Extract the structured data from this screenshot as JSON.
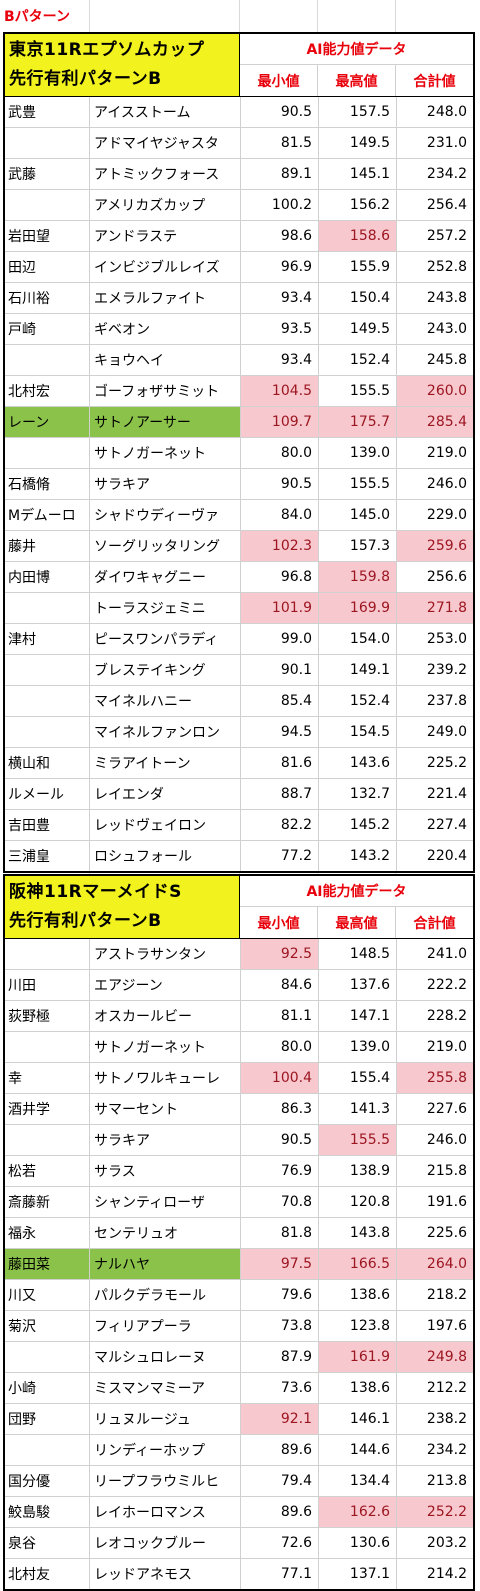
{
  "top_label": "Bパターン",
  "tables": [
    {
      "title1": "東京11Rエプソムカップ",
      "title2": "先行有利パターンB",
      "ai_header": "AI能力値データ",
      "col_min": "最小値",
      "col_max": "最高値",
      "col_total": "合計値",
      "rows": [
        {
          "jockey": "武豊",
          "horse": "アイスストーム",
          "min": "90.5",
          "max": "157.5",
          "total": "248.0",
          "hl": [
            0,
            0,
            0
          ],
          "green": false
        },
        {
          "jockey": "",
          "horse": "アドマイヤジャスタ",
          "min": "81.5",
          "max": "149.5",
          "total": "231.0",
          "hl": [
            0,
            0,
            0
          ],
          "green": false
        },
        {
          "jockey": "武藤",
          "horse": "アトミックフォース",
          "min": "89.1",
          "max": "145.1",
          "total": "234.2",
          "hl": [
            0,
            0,
            0
          ],
          "green": false
        },
        {
          "jockey": "",
          "horse": "アメリカズカップ",
          "min": "100.2",
          "max": "156.2",
          "total": "256.4",
          "hl": [
            0,
            0,
            0
          ],
          "green": false
        },
        {
          "jockey": "岩田望",
          "horse": "アンドラステ",
          "min": "98.6",
          "max": "158.6",
          "total": "257.2",
          "hl": [
            0,
            1,
            0
          ],
          "green": false
        },
        {
          "jockey": "田辺",
          "horse": "インビジブルレイズ",
          "min": "96.9",
          "max": "155.9",
          "total": "252.8",
          "hl": [
            0,
            0,
            0
          ],
          "green": false
        },
        {
          "jockey": "石川裕",
          "horse": "エメラルファイト",
          "min": "93.4",
          "max": "150.4",
          "total": "243.8",
          "hl": [
            0,
            0,
            0
          ],
          "green": false
        },
        {
          "jockey": "戸崎",
          "horse": "ギベオン",
          "min": "93.5",
          "max": "149.5",
          "total": "243.0",
          "hl": [
            0,
            0,
            0
          ],
          "green": false
        },
        {
          "jockey": "",
          "horse": "キョウヘイ",
          "min": "93.4",
          "max": "152.4",
          "total": "245.8",
          "hl": [
            0,
            0,
            0
          ],
          "green": false
        },
        {
          "jockey": "北村宏",
          "horse": "ゴーフォザサミット",
          "min": "104.5",
          "max": "155.5",
          "total": "260.0",
          "hl": [
            1,
            0,
            1
          ],
          "green": false
        },
        {
          "jockey": "レーン",
          "horse": "サトノアーサー",
          "min": "109.7",
          "max": "175.7",
          "total": "285.4",
          "hl": [
            1,
            1,
            1
          ],
          "green": true
        },
        {
          "jockey": "",
          "horse": "サトノガーネット",
          "min": "80.0",
          "max": "139.0",
          "total": "219.0",
          "hl": [
            0,
            0,
            0
          ],
          "green": false
        },
        {
          "jockey": "石橋脩",
          "horse": "サラキア",
          "min": "90.5",
          "max": "155.5",
          "total": "246.0",
          "hl": [
            0,
            0,
            0
          ],
          "green": false
        },
        {
          "jockey": "Mデムーロ",
          "horse": "シャドウディーヴァ",
          "min": "84.0",
          "max": "145.0",
          "total": "229.0",
          "hl": [
            0,
            0,
            0
          ],
          "green": false
        },
        {
          "jockey": "藤井",
          "horse": "ソーグリッタリング",
          "min": "102.3",
          "max": "157.3",
          "total": "259.6",
          "hl": [
            1,
            0,
            1
          ],
          "green": false
        },
        {
          "jockey": "内田博",
          "horse": "ダイワキャグニー",
          "min": "96.8",
          "max": "159.8",
          "total": "256.6",
          "hl": [
            0,
            1,
            0
          ],
          "green": false
        },
        {
          "jockey": "",
          "horse": "トーラスジェミニ",
          "min": "101.9",
          "max": "169.9",
          "total": "271.8",
          "hl": [
            1,
            1,
            1
          ],
          "green": false
        },
        {
          "jockey": "津村",
          "horse": "ピースワンパラディ",
          "min": "99.0",
          "max": "154.0",
          "total": "253.0",
          "hl": [
            0,
            0,
            0
          ],
          "green": false
        },
        {
          "jockey": "",
          "horse": "ブレステイキング",
          "min": "90.1",
          "max": "149.1",
          "total": "239.2",
          "hl": [
            0,
            0,
            0
          ],
          "green": false
        },
        {
          "jockey": "",
          "horse": "マイネルハニー",
          "min": "85.4",
          "max": "152.4",
          "total": "237.8",
          "hl": [
            0,
            0,
            0
          ],
          "green": false
        },
        {
          "jockey": "",
          "horse": "マイネルファンロン",
          "min": "94.5",
          "max": "154.5",
          "total": "249.0",
          "hl": [
            0,
            0,
            0
          ],
          "green": false
        },
        {
          "jockey": "横山和",
          "horse": "ミラアイトーン",
          "min": "81.6",
          "max": "143.6",
          "total": "225.2",
          "hl": [
            0,
            0,
            0
          ],
          "green": false
        },
        {
          "jockey": "ルメール",
          "horse": "レイエンダ",
          "min": "88.7",
          "max": "132.7",
          "total": "221.4",
          "hl": [
            0,
            0,
            0
          ],
          "green": false
        },
        {
          "jockey": "吉田豊",
          "horse": "レッドヴェイロン",
          "min": "82.2",
          "max": "145.2",
          "total": "227.4",
          "hl": [
            0,
            0,
            0
          ],
          "green": false
        },
        {
          "jockey": "三浦皇",
          "horse": "ロシュフォール",
          "min": "77.2",
          "max": "143.2",
          "total": "220.4",
          "hl": [
            0,
            0,
            0
          ],
          "green": false
        }
      ]
    },
    {
      "title1": "阪神11RマーメイドS",
      "title2": "先行有利パターンB",
      "ai_header": "AI能力値データ",
      "col_min": "最小値",
      "col_max": "最高値",
      "col_total": "合計値",
      "rows": [
        {
          "jockey": "",
          "horse": "アストラサンタン",
          "min": "92.5",
          "max": "148.5",
          "total": "241.0",
          "hl": [
            1,
            0,
            0
          ],
          "green": false
        },
        {
          "jockey": "川田",
          "horse": "エアジーン",
          "min": "84.6",
          "max": "137.6",
          "total": "222.2",
          "hl": [
            0,
            0,
            0
          ],
          "green": false
        },
        {
          "jockey": "荻野極",
          "horse": "オスカールビー",
          "min": "81.1",
          "max": "147.1",
          "total": "228.2",
          "hl": [
            0,
            0,
            0
          ],
          "green": false
        },
        {
          "jockey": "",
          "horse": "サトノガーネット",
          "min": "80.0",
          "max": "139.0",
          "total": "219.0",
          "hl": [
            0,
            0,
            0
          ],
          "green": false
        },
        {
          "jockey": "幸",
          "horse": "サトノワルキューレ",
          "min": "100.4",
          "max": "155.4",
          "total": "255.8",
          "hl": [
            1,
            0,
            1
          ],
          "green": false
        },
        {
          "jockey": "酒井学",
          "horse": "サマーセント",
          "min": "86.3",
          "max": "141.3",
          "total": "227.6",
          "hl": [
            0,
            0,
            0
          ],
          "green": false
        },
        {
          "jockey": "",
          "horse": "サラキア",
          "min": "90.5",
          "max": "155.5",
          "total": "246.0",
          "hl": [
            0,
            1,
            0
          ],
          "green": false
        },
        {
          "jockey": "松若",
          "horse": "サラス",
          "min": "76.9",
          "max": "138.9",
          "total": "215.8",
          "hl": [
            0,
            0,
            0
          ],
          "green": false
        },
        {
          "jockey": "斎藤新",
          "horse": "シャンティローザ",
          "min": "70.8",
          "max": "120.8",
          "total": "191.6",
          "hl": [
            0,
            0,
            0
          ],
          "green": false
        },
        {
          "jockey": "福永",
          "horse": "センテリュオ",
          "min": "81.8",
          "max": "143.8",
          "total": "225.6",
          "hl": [
            0,
            0,
            0
          ],
          "green": false
        },
        {
          "jockey": "藤田菜",
          "horse": "ナルハヤ",
          "min": "97.5",
          "max": "166.5",
          "total": "264.0",
          "hl": [
            1,
            1,
            1
          ],
          "green": true
        },
        {
          "jockey": "川又",
          "horse": "パルクデラモール",
          "min": "79.6",
          "max": "138.6",
          "total": "218.2",
          "hl": [
            0,
            0,
            0
          ],
          "green": false
        },
        {
          "jockey": "菊沢",
          "horse": "フィリアプーラ",
          "min": "73.8",
          "max": "123.8",
          "total": "197.6",
          "hl": [
            0,
            0,
            0
          ],
          "green": false
        },
        {
          "jockey": "",
          "horse": "マルシュロレーヌ",
          "min": "87.9",
          "max": "161.9",
          "total": "249.8",
          "hl": [
            0,
            1,
            1
          ],
          "green": false
        },
        {
          "jockey": "小崎",
          "horse": "ミスマンマミーア",
          "min": "73.6",
          "max": "138.6",
          "total": "212.2",
          "hl": [
            0,
            0,
            0
          ],
          "green": false
        },
        {
          "jockey": "団野",
          "horse": "リュヌルージュ",
          "min": "92.1",
          "max": "146.1",
          "total": "238.2",
          "hl": [
            1,
            0,
            0
          ],
          "green": false
        },
        {
          "jockey": "",
          "horse": "リンディーホップ",
          "min": "89.6",
          "max": "144.6",
          "total": "234.2",
          "hl": [
            0,
            0,
            0
          ],
          "green": false
        },
        {
          "jockey": "国分優",
          "horse": "リープフラウミルヒ",
          "min": "79.4",
          "max": "134.4",
          "total": "213.8",
          "hl": [
            0,
            0,
            0
          ],
          "green": false
        },
        {
          "jockey": "鮫島駿",
          "horse": "レイホーロマンス",
          "min": "89.6",
          "max": "162.6",
          "total": "252.2",
          "hl": [
            0,
            1,
            1
          ],
          "green": false
        },
        {
          "jockey": "泉谷",
          "horse": "レオコックブルー",
          "min": "72.6",
          "max": "130.6",
          "total": "203.2",
          "hl": [
            0,
            0,
            0
          ],
          "green": false
        },
        {
          "jockey": "北村友",
          "horse": "レッドアネモス",
          "min": "77.1",
          "max": "137.1",
          "total": "214.2",
          "hl": [
            0,
            0,
            0
          ],
          "green": false
        }
      ]
    }
  ]
}
